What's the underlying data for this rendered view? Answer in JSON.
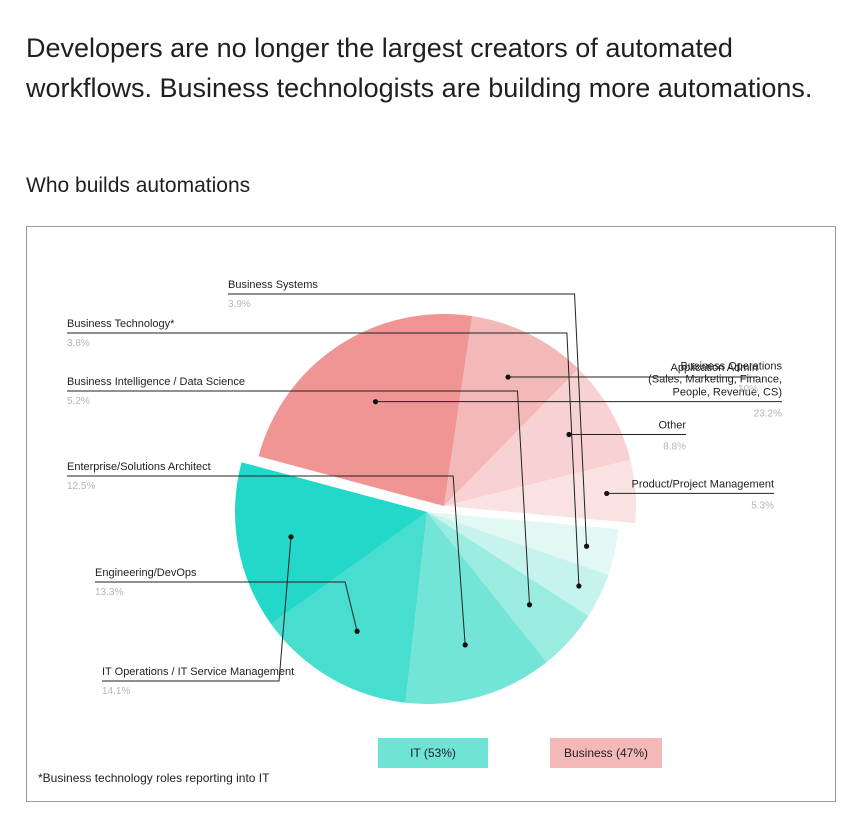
{
  "headline": "Developers are no longer the largest creators of automated workflows. Business technologists are building more automations.",
  "subtitle": "Who builds automations",
  "footnote": "*Business technology roles reporting into IT",
  "chart_data": {
    "type": "pie",
    "title": "Who builds automations",
    "groups": [
      {
        "name": "IT (53%)",
        "color": "#6ee3d6"
      },
      {
        "name": "Business (47%)",
        "color": "#f4b8b8"
      }
    ],
    "slices": [
      {
        "label": "Business Operations (Sales, Marketing, Finance, People, Revenue, CS)",
        "label_lines": [
          "Business Operations",
          "(Sales, Marketing, Finance,",
          "People, Revenue, CS)"
        ],
        "pct_text": "23.2%",
        "value": 23.2,
        "group": "Business",
        "color": "#f09494"
      },
      {
        "label": "Application Admin",
        "label_lines": [
          "Application Admin"
        ],
        "pct_text": "10%",
        "value": 10.0,
        "group": "Business",
        "color": "#f3b9b9"
      },
      {
        "label": "Other",
        "label_lines": [
          "Other"
        ],
        "pct_text": "8.8%",
        "value": 8.8,
        "group": "Business",
        "color": "#f8d2d2"
      },
      {
        "label": "Product/Project Management",
        "label_lines": [
          "Product/Project Management"
        ],
        "pct_text": "5.3%",
        "value": 5.3,
        "group": "Business",
        "color": "#fbe2e2"
      },
      {
        "label": "Business Systems",
        "label_lines": [
          "Business Systems"
        ],
        "pct_text": "3.9%",
        "value": 3.9,
        "group": "IT",
        "color": "#e1f8f5"
      },
      {
        "label": "Business Technology*",
        "label_lines": [
          "Business Technology*"
        ],
        "pct_text": "3.8%",
        "value": 3.8,
        "group": "IT",
        "color": "#c6f3ed"
      },
      {
        "label": "Business Intelligence / Data Science",
        "label_lines": [
          "Business Intelligence / Data Science"
        ],
        "pct_text": "5.2%",
        "value": 5.2,
        "group": "IT",
        "color": "#9aebe0"
      },
      {
        "label": "Enterprise/Solutions Architect",
        "label_lines": [
          "Enterprise/Solutions Architect"
        ],
        "pct_text": "12.5%",
        "value": 12.5,
        "group": "IT",
        "color": "#72e4d8"
      },
      {
        "label": "Engineering/DevOps",
        "label_lines": [
          "Engineering/DevOps"
        ],
        "pct_text": "13.3%",
        "value": 13.3,
        "group": "IT",
        "color": "#47ddcf"
      },
      {
        "label": "IT Operations / IT Service Management",
        "label_lines": [
          "IT Operations / IT Service Management"
        ],
        "pct_text": "14.1%",
        "value": 14.1,
        "group": "IT",
        "color": "#22d8c9"
      }
    ]
  }
}
